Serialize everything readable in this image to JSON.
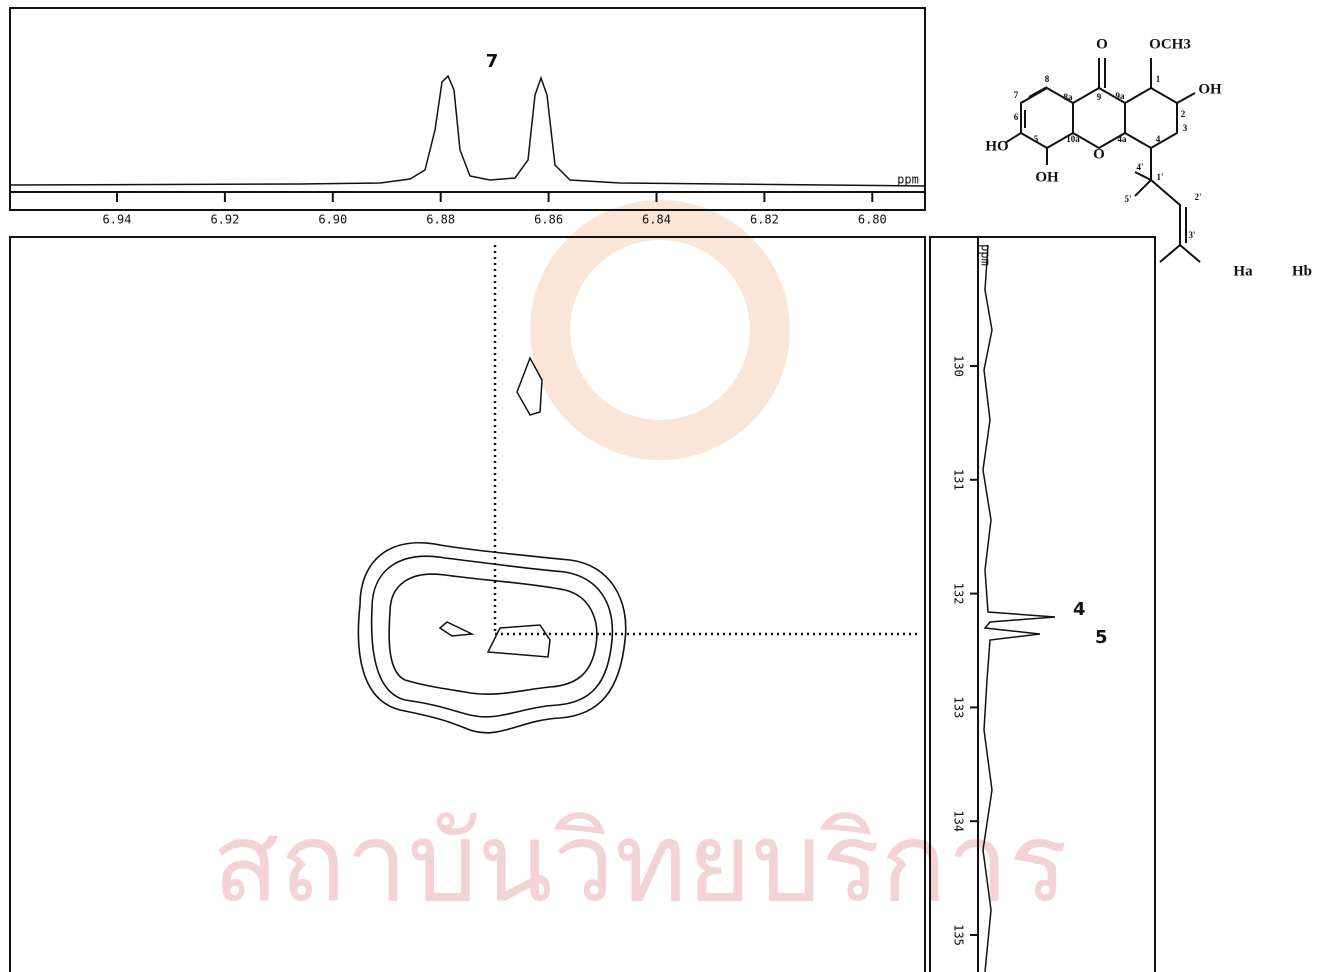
{
  "top_spectrum": {
    "peak_label": "7",
    "unit": "ppm",
    "ticks": [
      "6.94",
      "6.92",
      "6.90",
      "6.88",
      "6.86",
      "6.84",
      "6.82",
      "6.80"
    ]
  },
  "right_spectrum": {
    "unit": "ppm",
    "ticks": [
      "130",
      "131",
      "132",
      "133",
      "134",
      "135"
    ],
    "peak_labels": [
      "4",
      "5"
    ]
  },
  "structure": {
    "labels": [
      "O",
      "OCH3",
      "OH",
      "HO",
      "OH",
      "O",
      "Ha",
      "Hb"
    ],
    "numbers": [
      "8",
      "7",
      "6",
      "5",
      "8a",
      "9",
      "9a",
      "1",
      "2",
      "3",
      "4",
      "4a",
      "10a",
      "1'",
      "2'",
      "3'",
      "4'",
      "5'"
    ]
  },
  "watermark": "สถาบันวิทยบริการ"
}
